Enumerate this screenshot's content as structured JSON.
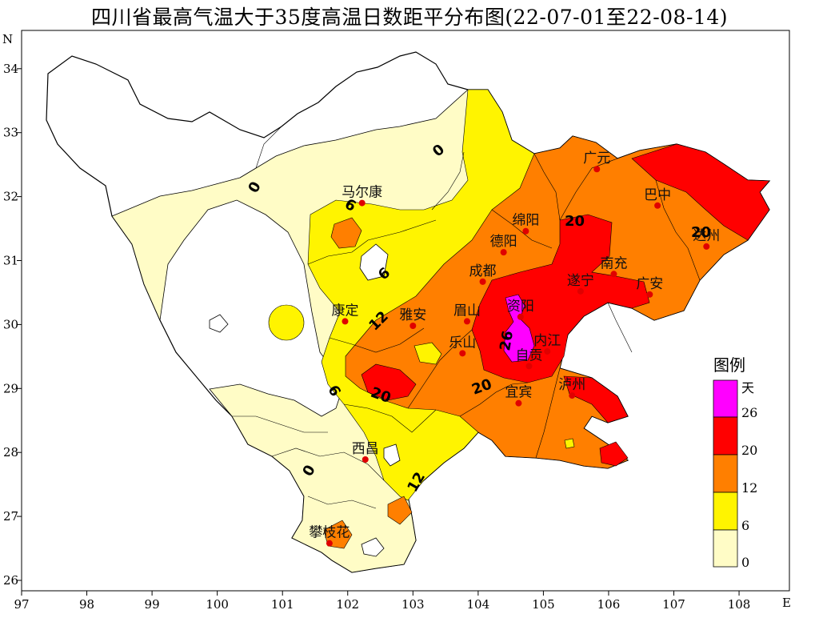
{
  "title": "四川省最高气温大于35度高温日数距平分布图(22-07-01至22-08-14)",
  "axes": {
    "x_ticks": [
      "97",
      "98",
      "99",
      "100",
      "101",
      "102",
      "103",
      "104",
      "105",
      "106",
      "107",
      "108"
    ],
    "y_ticks": [
      "26",
      "27",
      "28",
      "29",
      "30",
      "31",
      "32",
      "33",
      "34"
    ],
    "x_unit": "E",
    "y_unit": "N"
  },
  "colors": {
    "c0": "#fffcc6",
    "c6": "#fff400",
    "c12": "#ff7f00",
    "c20": "#ff0000",
    "c26": "#ff00ff",
    "station": "#e00000"
  },
  "cities": [
    {
      "name": "马尔康",
      "lon": 102.22,
      "lat": 31.9
    },
    {
      "name": "广元",
      "lon": 105.82,
      "lat": 32.43
    },
    {
      "name": "巴中",
      "lon": 106.75,
      "lat": 31.86
    },
    {
      "name": "绵阳",
      "lon": 104.73,
      "lat": 31.46
    },
    {
      "name": "德阳",
      "lon": 104.39,
      "lat": 31.13
    },
    {
      "name": "达州",
      "lon": 107.5,
      "lat": 31.22
    },
    {
      "name": "南充",
      "lon": 106.08,
      "lat": 30.79
    },
    {
      "name": "成都",
      "lon": 104.07,
      "lat": 30.67
    },
    {
      "name": "遂宁",
      "lon": 105.57,
      "lat": 30.52
    },
    {
      "name": "广安",
      "lon": 106.63,
      "lat": 30.47
    },
    {
      "name": "康定",
      "lon": 101.96,
      "lat": 30.05
    },
    {
      "name": "雅安",
      "lon": 103.0,
      "lat": 29.98
    },
    {
      "name": "眉山",
      "lon": 103.83,
      "lat": 30.05
    },
    {
      "name": "资阳",
      "lon": 104.65,
      "lat": 30.12
    },
    {
      "name": "乐山",
      "lon": 103.76,
      "lat": 29.55
    },
    {
      "name": "内江",
      "lon": 105.06,
      "lat": 29.58
    },
    {
      "name": "自贡",
      "lon": 104.78,
      "lat": 29.35
    },
    {
      "name": "宜宾",
      "lon": 104.62,
      "lat": 28.77
    },
    {
      "name": "泸州",
      "lon": 105.44,
      "lat": 28.89
    },
    {
      "name": "西昌",
      "lon": 102.27,
      "lat": 27.89
    },
    {
      "name": "攀枝花",
      "lon": 101.72,
      "lat": 26.58
    }
  ],
  "contour_labels": [
    "0",
    "0",
    "0",
    "6",
    "6",
    "6",
    "12",
    "12",
    "20",
    "20",
    "20",
    "20",
    "26"
  ],
  "legend": {
    "title": "图例",
    "unit": "天",
    "levels": [
      "26",
      "20",
      "12",
      "6",
      "0"
    ]
  }
}
